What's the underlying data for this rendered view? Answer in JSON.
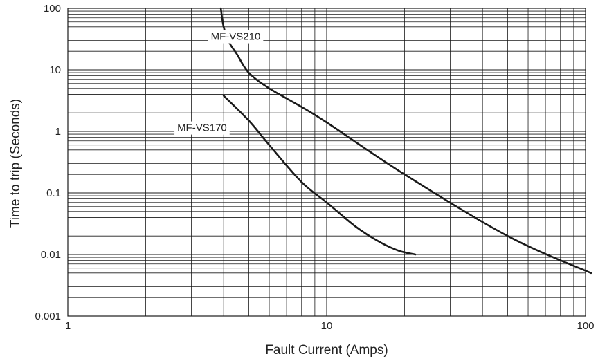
{
  "chart_data": {
    "type": "line",
    "title": "",
    "xlabel": "Fault Current (Amps)",
    "ylabel": "Time to trip (Seconds)",
    "xscale": "log",
    "yscale": "log",
    "xlim": [
      1,
      100
    ],
    "ylim": [
      0.001,
      100
    ],
    "grid": true,
    "x_ticks": [
      "1",
      "10",
      "100"
    ],
    "y_ticks": [
      "0.001",
      "0.01",
      "0.1",
      "1",
      "10",
      "100"
    ],
    "series": [
      {
        "name": "MF-VS210",
        "label_at": [
          4.45,
          35
        ],
        "points": [
          [
            3.9,
            100
          ],
          [
            4.0,
            50
          ],
          [
            4.2,
            28
          ],
          [
            4.5,
            18
          ],
          [
            5.0,
            9
          ],
          [
            6.0,
            5
          ],
          [
            8.0,
            2.5
          ],
          [
            10.0,
            1.4
          ],
          [
            20.0,
            0.2
          ],
          [
            50.0,
            0.02
          ],
          [
            105.0,
            0.005
          ]
        ]
      },
      {
        "name": "MF-VS170",
        "label_at": [
          3.3,
          1.15
        ],
        "points": [
          [
            4.0,
            3.8
          ],
          [
            5.0,
            1.5
          ],
          [
            6.0,
            0.6
          ],
          [
            8.0,
            0.15
          ],
          [
            10.0,
            0.07
          ],
          [
            13.0,
            0.028
          ],
          [
            16.0,
            0.016
          ],
          [
            19.0,
            0.0115
          ],
          [
            22.0,
            0.01
          ]
        ]
      }
    ]
  }
}
